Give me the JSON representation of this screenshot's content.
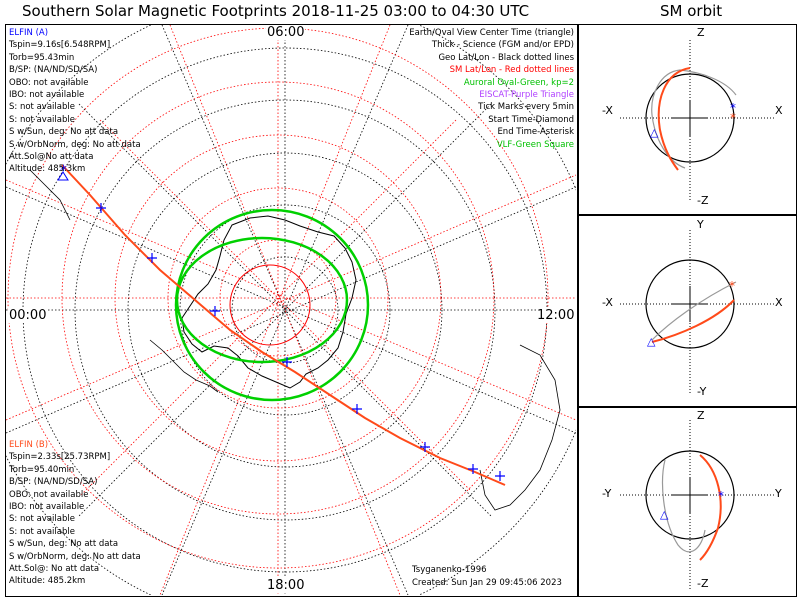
{
  "title": "Southern Solar Magnetic Footprints 2018-11-25 03:00 to 04:30 UTC",
  "sm_title": "SM orbit",
  "time_labels": {
    "top": "06:00",
    "left": "00:00",
    "right": "12:00",
    "bottom": "18:00"
  },
  "elfin_a": {
    "name": "ELFIN (A)",
    "color": "#0000ff",
    "lines": [
      "Tspin=9.16s[6.548RPM]",
      "Torb=95.43min",
      "B/SP: (NA/ND/SD/SA)",
      "OBO: not available",
      "IBO: not available",
      "S: not available",
      "S: not available",
      "S w/Sun, deg: No att data",
      "S w/OrbNorm, deg: No att data",
      "Att.Sol@No att data",
      "Altitude: 485.3km"
    ]
  },
  "elfin_b": {
    "name": "ELFIN (B)",
    "color": "#ff4a1a",
    "lines": [
      "Tspin=2.33s[25.73RPM]",
      "Torb=95.40min",
      "B/SP: (NA/ND/SD/SA)",
      "OBO: not available",
      "IBO: not available",
      "S: not available",
      "S: not available",
      "S w/Sun, deg: No att data",
      "S w/OrbNorm, deg: No att data",
      "Att.Sol@: No att data",
      "Altitude: 485.2km"
    ]
  },
  "legend": [
    {
      "text": "Earth/Oval View Center Time (triangle)",
      "color": "#000000"
    },
    {
      "text": "Thick - Science (FGM and/or EPD)",
      "color": "#000000"
    },
    {
      "text": "Geo Lat/Lon - Black dotted lines",
      "color": "#000000"
    },
    {
      "text": "SM Lat/Lon - Red dotted lines",
      "color": "#ff0000"
    },
    {
      "text": "Auroral Oval-Green, kp=2",
      "color": "#00c000"
    },
    {
      "text": "EISCAT-Purple Triangle",
      "color": "#b040ff"
    },
    {
      "text": "Tick Marks every 5min",
      "color": "#000000"
    },
    {
      "text": "Start Time-Diamond",
      "color": "#000000"
    },
    {
      "text": "End Time-Asterisk",
      "color": "#000000"
    },
    {
      "text": "VLF-Green Square",
      "color": "#00c000"
    }
  ],
  "credit": "Tsyganenko-1996",
  "created": "Created: Sun Jan 29 09:45:06 2023",
  "sm_panels": [
    {
      "top": "Z",
      "bottom": "-Z",
      "left": "-X",
      "right": "X"
    },
    {
      "top": "Y",
      "bottom": "-Y",
      "left": "-X",
      "right": "X"
    },
    {
      "top": "Z",
      "bottom": "-Z",
      "left": "-Y",
      "right": "Y"
    }
  ],
  "colors": {
    "sm_grid": "#ff0000",
    "geo_grid": "#000000",
    "oval": "#00d000",
    "track_b": "#ff4a1a",
    "track_a": "#0000ff"
  }
}
